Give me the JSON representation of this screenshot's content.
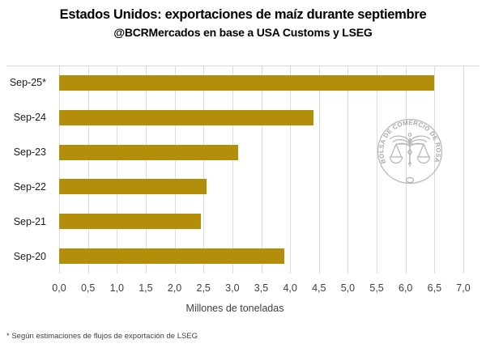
{
  "title": "Estados Unidos: exportaciones de maíz durante septiembre",
  "subtitle": "@BCRMercados en base a USA Customs y LSEG",
  "footnote": "* Según estimaciones de flujos de exportación de LSEG",
  "watermark": {
    "seal_text": "BOLSA DE COMERCIO DE ROSARIO"
  },
  "chart_data": {
    "type": "bar",
    "orientation": "horizontal",
    "title": "Estados Unidos: exportaciones de maíz durante septiembre",
    "subtitle": "@BCRMercados en base a USA Customs y LSEG",
    "categories": [
      "Sep-25*",
      "Sep-24",
      "Sep-23",
      "Sep-22",
      "Sep-21",
      "Sep-20"
    ],
    "values": [
      6.5,
      4.4,
      3.1,
      2.55,
      2.45,
      3.9
    ],
    "xlabel": "Millones de toneladas",
    "xlim": [
      0,
      7
    ],
    "xtick_step": 0.5,
    "xtick_labels": [
      "0,0",
      "0,5",
      "1,0",
      "1,5",
      "2,0",
      "2,5",
      "3,0",
      "3,5",
      "4,0",
      "4,5",
      "5,0",
      "5,5",
      "6,0",
      "6,5",
      "7,0"
    ],
    "grid": "vertical",
    "legend": "none",
    "bar_color": "#B28E0A"
  },
  "colors": {
    "background": "#FFFFFF",
    "bar": "#B28E0A",
    "grid": "#DCDCDC",
    "title_text": "#000000",
    "axis_text": "#404040",
    "category_text": "#1A1A1A",
    "watermark": "#A3A3A3"
  }
}
